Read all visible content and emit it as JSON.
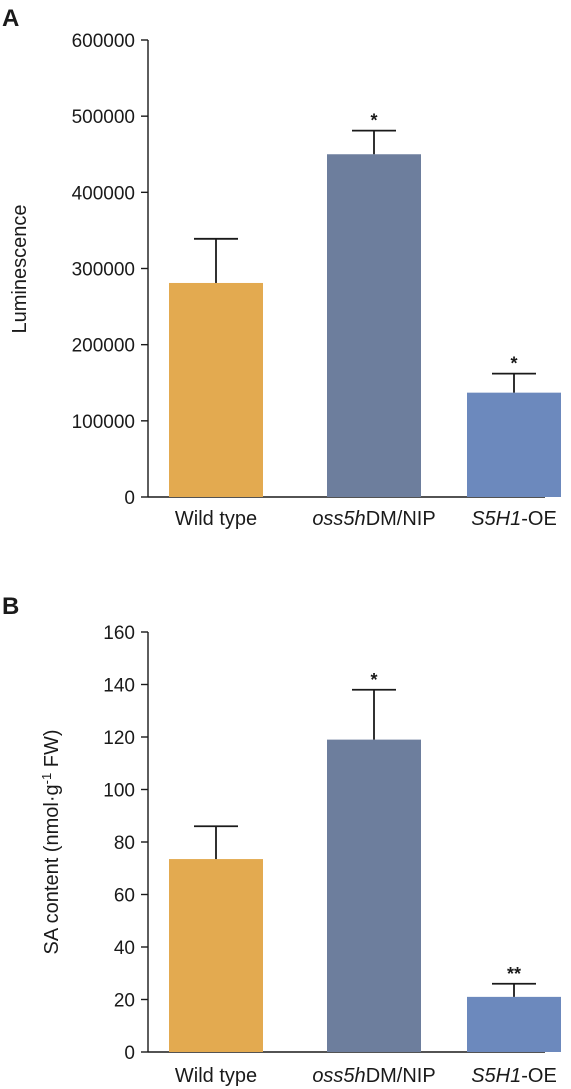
{
  "chart_data": [
    {
      "type": "bar",
      "panel": "A",
      "categories": [
        "Wild type",
        "oss5hDM/NIP",
        "S5H1-OE"
      ],
      "category_parts": [
        [
          {
            "t": "Wild type",
            "i": false
          }
        ],
        [
          {
            "t": "oss5h",
            "i": true
          },
          {
            "t": "DM/NIP",
            "i": false
          }
        ],
        [
          {
            "t": "S5H1",
            "i": true
          },
          {
            "t": "-OE",
            "i": false
          }
        ]
      ],
      "values": [
        281000,
        450000,
        137000
      ],
      "errors": [
        58000,
        31000,
        25000
      ],
      "significance": [
        "",
        "*",
        "*"
      ],
      "colors": [
        "#e3aa50",
        "#6d7e9d",
        "#6c89bd"
      ],
      "ylabel": "Luminescence",
      "ylim": [
        0,
        600000
      ],
      "yticks": [
        "0",
        "100000",
        "200000",
        "300000",
        "400000",
        "500000",
        "600000"
      ],
      "grid": false
    },
    {
      "type": "bar",
      "panel": "B",
      "categories": [
        "Wild type",
        "oss5hDM/NIP",
        "S5H1-OE"
      ],
      "category_parts": [
        [
          {
            "t": "Wild type",
            "i": false
          }
        ],
        [
          {
            "t": "oss5h",
            "i": true
          },
          {
            "t": "DM/NIP",
            "i": false
          }
        ],
        [
          {
            "t": "S5H1",
            "i": true
          },
          {
            "t": "-OE",
            "i": false
          }
        ]
      ],
      "values": [
        73.5,
        119,
        21
      ],
      "errors": [
        12.5,
        19,
        5
      ],
      "significance": [
        "",
        "*",
        "**"
      ],
      "colors": [
        "#e3aa50",
        "#6d7e9d",
        "#6c89bd"
      ],
      "ylabel": "SA content (nmol·g",
      "ylabel_sup": "-1",
      "ylabel_end": " FW)",
      "ylim": [
        0,
        160
      ],
      "yticks": [
        "0",
        "20",
        "40",
        "60",
        "80",
        "100",
        "120",
        "140",
        "160"
      ],
      "grid": false
    }
  ]
}
